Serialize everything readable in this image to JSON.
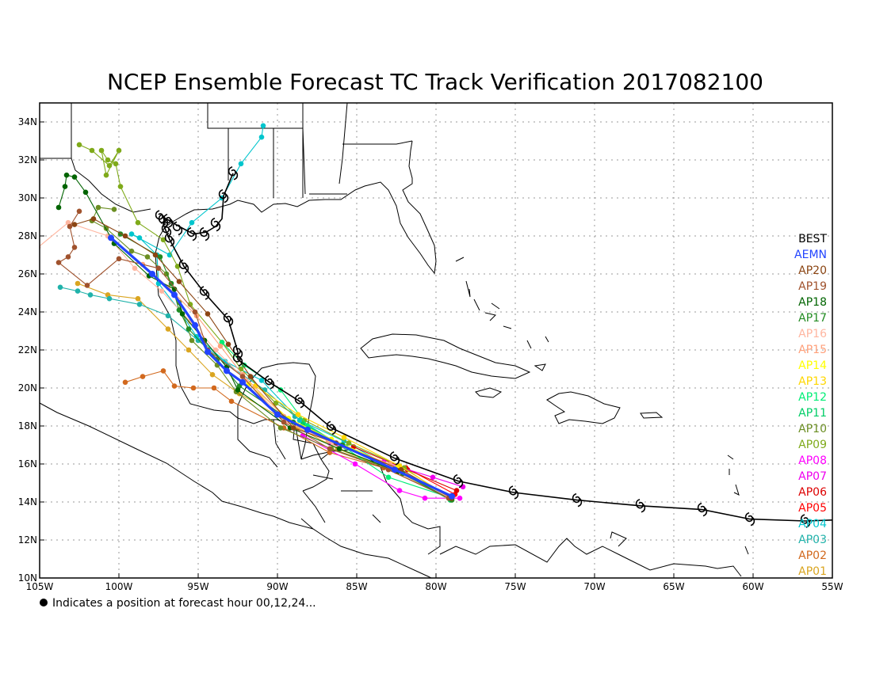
{
  "title": "NCEP Ensemble Forecast TC Track Verification 2017082100",
  "footnote": "Indicates a position at forecast hour 00,12,24...",
  "chart_data": {
    "type": "map",
    "x_axis": {
      "range": [
        -105,
        -55
      ],
      "ticks": [
        {
          "v": -105,
          "label": "105W"
        },
        {
          "v": -100,
          "label": "100W"
        },
        {
          "v": -95,
          "label": "95W"
        },
        {
          "v": -90,
          "label": "90W"
        },
        {
          "v": -85,
          "label": "85W"
        },
        {
          "v": -80,
          "label": "80W"
        },
        {
          "v": -75,
          "label": "75W"
        },
        {
          "v": -70,
          "label": "70W"
        },
        {
          "v": -65,
          "label": "65W"
        },
        {
          "v": -60,
          "label": "60W"
        },
        {
          "v": -55,
          "label": "55W"
        }
      ]
    },
    "y_axis": {
      "range": [
        10,
        35
      ],
      "ticks": [
        {
          "v": 10,
          "label": "10N"
        },
        {
          "v": 12,
          "label": "12N"
        },
        {
          "v": 14,
          "label": "14N"
        },
        {
          "v": 16,
          "label": "16N"
        },
        {
          "v": 18,
          "label": "18N"
        },
        {
          "v": 20,
          "label": "20N"
        },
        {
          "v": 22,
          "label": "22N"
        },
        {
          "v": 24,
          "label": "24N"
        },
        {
          "v": 26,
          "label": "26N"
        },
        {
          "v": 28,
          "label": "28N"
        },
        {
          "v": 30,
          "label": "30N"
        },
        {
          "v": 32,
          "label": "32N"
        },
        {
          "v": 34,
          "label": "34N"
        }
      ]
    },
    "grid": true,
    "legend_position": "right",
    "best_track": {
      "name": "BEST",
      "color": "#000000",
      "line": [
        [
          -53.2,
          13.1
        ],
        [
          -56.7,
          13.0
        ],
        [
          -60.2,
          13.1
        ],
        [
          -63.2,
          13.6
        ],
        [
          -67.1,
          13.8
        ],
        [
          -71.1,
          14.1
        ],
        [
          -75.1,
          14.5
        ],
        [
          -78.6,
          15.1
        ],
        [
          -82.6,
          16.3
        ],
        [
          -86.6,
          17.9
        ],
        [
          -88.6,
          19.3
        ],
        [
          -90.5,
          20.3
        ],
        [
          -92.5,
          21.5
        ],
        [
          -92.5,
          21.9
        ],
        [
          -93.1,
          23.6
        ],
        [
          -94.6,
          25.0
        ],
        [
          -95.9,
          26.4
        ],
        [
          -96.8,
          27.8
        ],
        [
          -97.2,
          28.6
        ],
        [
          -97.0,
          28.9
        ],
        [
          -96.2,
          28.5
        ],
        [
          -95.3,
          28.1
        ],
        [
          -94.5,
          28.2
        ],
        [
          -93.9,
          28.5
        ],
        [
          -93.5,
          28.9
        ],
        [
          -93.4,
          30.1
        ],
        [
          -92.8,
          31.3
        ]
      ],
      "symbols": [
        [
          -56.7,
          13.0
        ],
        [
          -60.2,
          13.1
        ],
        [
          -63.2,
          13.6
        ],
        [
          -67.1,
          13.8
        ],
        [
          -71.1,
          14.1
        ],
        [
          -75.1,
          14.5
        ],
        [
          -78.6,
          15.1
        ],
        [
          -82.6,
          16.3
        ],
        [
          -86.6,
          17.9
        ],
        [
          -88.6,
          19.3
        ],
        [
          -90.5,
          20.3
        ],
        [
          -92.5,
          21.5
        ],
        [
          -92.5,
          21.9
        ],
        [
          -93.1,
          23.6
        ],
        [
          -94.6,
          25.0
        ],
        [
          -95.9,
          26.4
        ],
        [
          -96.8,
          27.8
        ],
        [
          -97.0,
          28.3
        ],
        [
          -97.2,
          28.8
        ],
        [
          -97.4,
          29.0
        ],
        [
          -96.9,
          28.8
        ],
        [
          -96.3,
          28.4
        ],
        [
          -95.4,
          28.1
        ],
        [
          -94.6,
          28.1
        ],
        [
          -93.9,
          28.6
        ],
        [
          -93.4,
          30.1
        ],
        [
          -92.8,
          31.3
        ]
      ]
    },
    "members": [
      {
        "name": "AEMN",
        "color": "#2244ff",
        "points": [
          [
            -79.0,
            14.3
          ],
          [
            -82.6,
            15.7
          ],
          [
            -88.1,
            17.8
          ],
          [
            -90.0,
            18.6
          ],
          [
            -92.2,
            20.3
          ],
          [
            -93.2,
            20.9
          ],
          [
            -94.4,
            21.9
          ],
          [
            -95.2,
            23.3
          ],
          [
            -96.5,
            24.9
          ],
          [
            -97.9,
            26.0
          ],
          [
            -100.5,
            27.9
          ]
        ]
      },
      {
        "name": "AP20",
        "color": "#8b4513",
        "points": [
          [
            -79.0,
            14.2
          ],
          [
            -82.2,
            15.7
          ],
          [
            -86.3,
            17.1
          ],
          [
            -89.0,
            17.9
          ],
          [
            -91.7,
            20.6
          ],
          [
            -93.1,
            22.3
          ],
          [
            -94.4,
            23.9
          ],
          [
            -96.2,
            25.6
          ],
          [
            -97.7,
            27.0
          ],
          [
            -99.6,
            28.0
          ],
          [
            -101.6,
            28.9
          ],
          [
            -102.8,
            28.6
          ]
        ]
      },
      {
        "name": "AP19",
        "color": "#a0522d",
        "points": [
          [
            -79.2,
            14.2
          ],
          [
            -83.0,
            15.7
          ],
          [
            -86.7,
            16.8
          ],
          [
            -89.6,
            18.2
          ],
          [
            -92.2,
            20.6
          ],
          [
            -94.4,
            22.0
          ],
          [
            -95.2,
            24.0
          ],
          [
            -97.5,
            26.3
          ],
          [
            -100.0,
            26.8
          ],
          [
            -102.0,
            25.4
          ],
          [
            -103.8,
            26.6
          ],
          [
            -103.2,
            26.9
          ],
          [
            -102.8,
            27.4
          ],
          [
            -103.1,
            28.5
          ],
          [
            -102.5,
            29.3
          ]
        ]
      },
      {
        "name": "AP18",
        "color": "#006400",
        "points": [
          [
            -79.1,
            14.3
          ],
          [
            -82.4,
            15.6
          ],
          [
            -86.1,
            16.8
          ],
          [
            -89.2,
            17.9
          ],
          [
            -92.5,
            19.9
          ],
          [
            -93.2,
            21.1
          ],
          [
            -94.6,
            22.5
          ],
          [
            -96.0,
            23.9
          ],
          [
            -96.5,
            25.2
          ],
          [
            -98.1,
            25.9
          ],
          [
            -100.3,
            27.6
          ],
          [
            -102.1,
            30.3
          ],
          [
            -102.8,
            31.1
          ],
          [
            -103.3,
            31.2
          ],
          [
            -103.4,
            30.6
          ],
          [
            -103.8,
            29.5
          ]
        ]
      },
      {
        "name": "AP17",
        "color": "#228b22",
        "points": [
          [
            -79.0,
            14.1
          ],
          [
            -82.1,
            15.5
          ],
          [
            -85.9,
            17.0
          ],
          [
            -89.0,
            18.2
          ],
          [
            -92.4,
            20.1
          ],
          [
            -93.8,
            21.5
          ],
          [
            -95.6,
            23.1
          ],
          [
            -96.2,
            24.1
          ],
          [
            -96.7,
            25.5
          ],
          [
            -97.4,
            26.9
          ],
          [
            -99.9,
            28.1
          ]
        ]
      },
      {
        "name": "AP16",
        "color": "#ffb6a0",
        "points": [
          [
            -79.1,
            14.2
          ],
          [
            -82.7,
            15.8
          ],
          [
            -86.5,
            17.1
          ],
          [
            -89.4,
            18.2
          ],
          [
            -92.0,
            20.4
          ],
          [
            -93.9,
            22.0
          ],
          [
            -95.5,
            23.5
          ],
          [
            -97.3,
            25.1
          ],
          [
            -99.0,
            26.3
          ],
          [
            -100.7,
            28.0
          ],
          [
            -103.2,
            28.7
          ],
          [
            -105.1,
            27.4
          ]
        ]
      },
      {
        "name": "AP15",
        "color": "#ffa07a",
        "points": [
          [
            -79.3,
            14.3
          ],
          [
            -82.9,
            16.0
          ],
          [
            -86.8,
            17.2
          ],
          [
            -89.6,
            18.5
          ],
          [
            -92.2,
            20.7
          ],
          [
            -93.6,
            22.2
          ],
          [
            -95.1,
            23.8
          ],
          [
            -96.9,
            25.3
          ],
          [
            -98.5,
            26.5
          ]
        ]
      },
      {
        "name": "AP14",
        "color": "#ffff00",
        "points": [
          [
            -79.0,
            14.2
          ],
          [
            -82.5,
            15.8
          ],
          [
            -86.6,
            17.3
          ],
          [
            -89.3,
            18.4
          ],
          [
            -91.8,
            20.2
          ]
        ]
      },
      {
        "name": "AP13",
        "color": "#ffd700",
        "points": [
          [
            -79.2,
            14.3
          ],
          [
            -82.3,
            15.9
          ],
          [
            -85.8,
            17.4
          ],
          [
            -88.7,
            18.6
          ],
          [
            -91.4,
            20.1
          ]
        ]
      },
      {
        "name": "AP12",
        "color": "#00ee76",
        "points": [
          [
            -79.0,
            14.2
          ],
          [
            -83.0,
            15.3
          ],
          [
            -86.0,
            17.0
          ],
          [
            -88.1,
            18.0
          ],
          [
            -89.8,
            19.9
          ],
          [
            -92.1,
            21.2
          ],
          [
            -93.5,
            22.4
          ]
        ]
      },
      {
        "name": "AP11",
        "color": "#00cd66",
        "points": [
          [
            -79.1,
            14.1
          ],
          [
            -82.1,
            15.5
          ],
          [
            -85.7,
            16.9
          ],
          [
            -88.4,
            18.1
          ]
        ]
      },
      {
        "name": "AP10",
        "color": "#6b8e23",
        "points": [
          [
            -79.1,
            14.2
          ],
          [
            -82.4,
            15.6
          ],
          [
            -86.6,
            16.8
          ],
          [
            -89.8,
            17.9
          ],
          [
            -92.6,
            19.8
          ],
          [
            -93.8,
            21.2
          ],
          [
            -95.4,
            22.5
          ],
          [
            -96.2,
            24.5
          ],
          [
            -97.0,
            26.0
          ],
          [
            -98.2,
            26.9
          ],
          [
            -99.2,
            27.2
          ],
          [
            -100.8,
            28.4
          ],
          [
            -101.7,
            28.8
          ],
          [
            -101.3,
            29.5
          ],
          [
            -100.3,
            29.4
          ]
        ]
      },
      {
        "name": "AP09",
        "color": "#7faa1a",
        "points": [
          [
            -79.2,
            14.2
          ],
          [
            -82.0,
            15.8
          ],
          [
            -85.5,
            17.1
          ],
          [
            -88.3,
            18.3
          ],
          [
            -90.1,
            19.2
          ],
          [
            -92.3,
            21.0
          ],
          [
            -93.5,
            22.4
          ],
          [
            -95.5,
            24.4
          ],
          [
            -96.3,
            26.4
          ],
          [
            -97.2,
            27.8
          ],
          [
            -98.8,
            28.7
          ],
          [
            -99.9,
            30.6
          ],
          [
            -100.2,
            31.8
          ],
          [
            -100.7,
            32.0
          ],
          [
            -101.1,
            32.5
          ],
          [
            -100.8,
            31.2
          ],
          [
            -100.0,
            32.5
          ],
          [
            -100.6,
            31.7
          ],
          [
            -101.7,
            32.5
          ],
          [
            -102.5,
            32.8
          ]
        ]
      },
      {
        "name": "AP08",
        "color": "#ff00ff",
        "points": [
          [
            -78.5,
            14.2
          ],
          [
            -80.7,
            14.2
          ],
          [
            -82.3,
            14.6
          ],
          [
            -85.1,
            16.0
          ],
          [
            -88.4,
            17.5
          ]
        ]
      },
      {
        "name": "AP07",
        "color": "#ee00ee",
        "points": [
          [
            -78.3,
            14.8
          ],
          [
            -80.2,
            15.3
          ],
          [
            -83.3,
            16.1
          ],
          [
            -86.7,
            17.1
          ]
        ]
      },
      {
        "name": "AP06",
        "color": "#dd0000",
        "points": [
          [
            -78.7,
            14.6
          ],
          [
            -81.8,
            15.7
          ],
          [
            -85.2,
            16.9
          ]
        ]
      },
      {
        "name": "AP05",
        "color": "#ff0000",
        "points": [
          [
            -78.8,
            14.4
          ],
          [
            -81.9,
            15.8
          ]
        ]
      },
      {
        "name": "AP04",
        "color": "#00c5cd",
        "points": [
          [
            -79.0,
            14.2
          ],
          [
            -82.4,
            15.6
          ],
          [
            -85.8,
            17.2
          ],
          [
            -88.6,
            18.3
          ],
          [
            -91.0,
            20.4
          ],
          [
            -93.3,
            21.4
          ],
          [
            -95.1,
            22.7
          ],
          [
            -96.2,
            24.1
          ],
          [
            -97.5,
            25.5
          ],
          [
            -97.6,
            27.0
          ],
          [
            -98.7,
            27.9
          ],
          [
            -99.2,
            28.1
          ],
          [
            -96.8,
            27.0
          ],
          [
            -95.4,
            28.7
          ],
          [
            -93.5,
            30.0
          ],
          [
            -92.3,
            31.8
          ],
          [
            -91.0,
            33.2
          ],
          [
            -90.9,
            33.8
          ]
        ]
      },
      {
        "name": "AP03",
        "color": "#20b2aa",
        "points": [
          [
            -79.2,
            14.3
          ],
          [
            -82.7,
            15.7
          ],
          [
            -86.1,
            17.0
          ],
          [
            -88.9,
            18.5
          ],
          [
            -90.8,
            19.9
          ],
          [
            -93.1,
            21.2
          ],
          [
            -95.0,
            22.5
          ],
          [
            -96.9,
            23.8
          ],
          [
            -98.7,
            24.4
          ],
          [
            -100.6,
            24.7
          ],
          [
            -101.8,
            24.9
          ],
          [
            -102.6,
            25.1
          ],
          [
            -103.7,
            25.3
          ]
        ]
      },
      {
        "name": "AP02",
        "color": "#d2691e",
        "points": [
          [
            -79.1,
            14.2
          ],
          [
            -83.3,
            15.8
          ],
          [
            -86.7,
            16.6
          ],
          [
            -89.6,
            17.9
          ],
          [
            -92.9,
            19.3
          ],
          [
            -94.0,
            20.0
          ],
          [
            -95.3,
            20.0
          ],
          [
            -96.5,
            20.1
          ],
          [
            -97.2,
            20.9
          ],
          [
            -98.5,
            20.6
          ],
          [
            -99.6,
            20.3
          ]
        ]
      },
      {
        "name": "AP01",
        "color": "#daa520",
        "points": [
          [
            -79.1,
            14.2
          ],
          [
            -82.5,
            15.6
          ],
          [
            -86.2,
            16.8
          ],
          [
            -88.7,
            17.9
          ],
          [
            -92.4,
            19.7
          ],
          [
            -94.1,
            20.7
          ],
          [
            -95.6,
            22.0
          ],
          [
            -96.9,
            23.1
          ],
          [
            -98.8,
            24.7
          ],
          [
            -100.7,
            24.9
          ],
          [
            -102.6,
            25.5
          ]
        ]
      }
    ]
  }
}
